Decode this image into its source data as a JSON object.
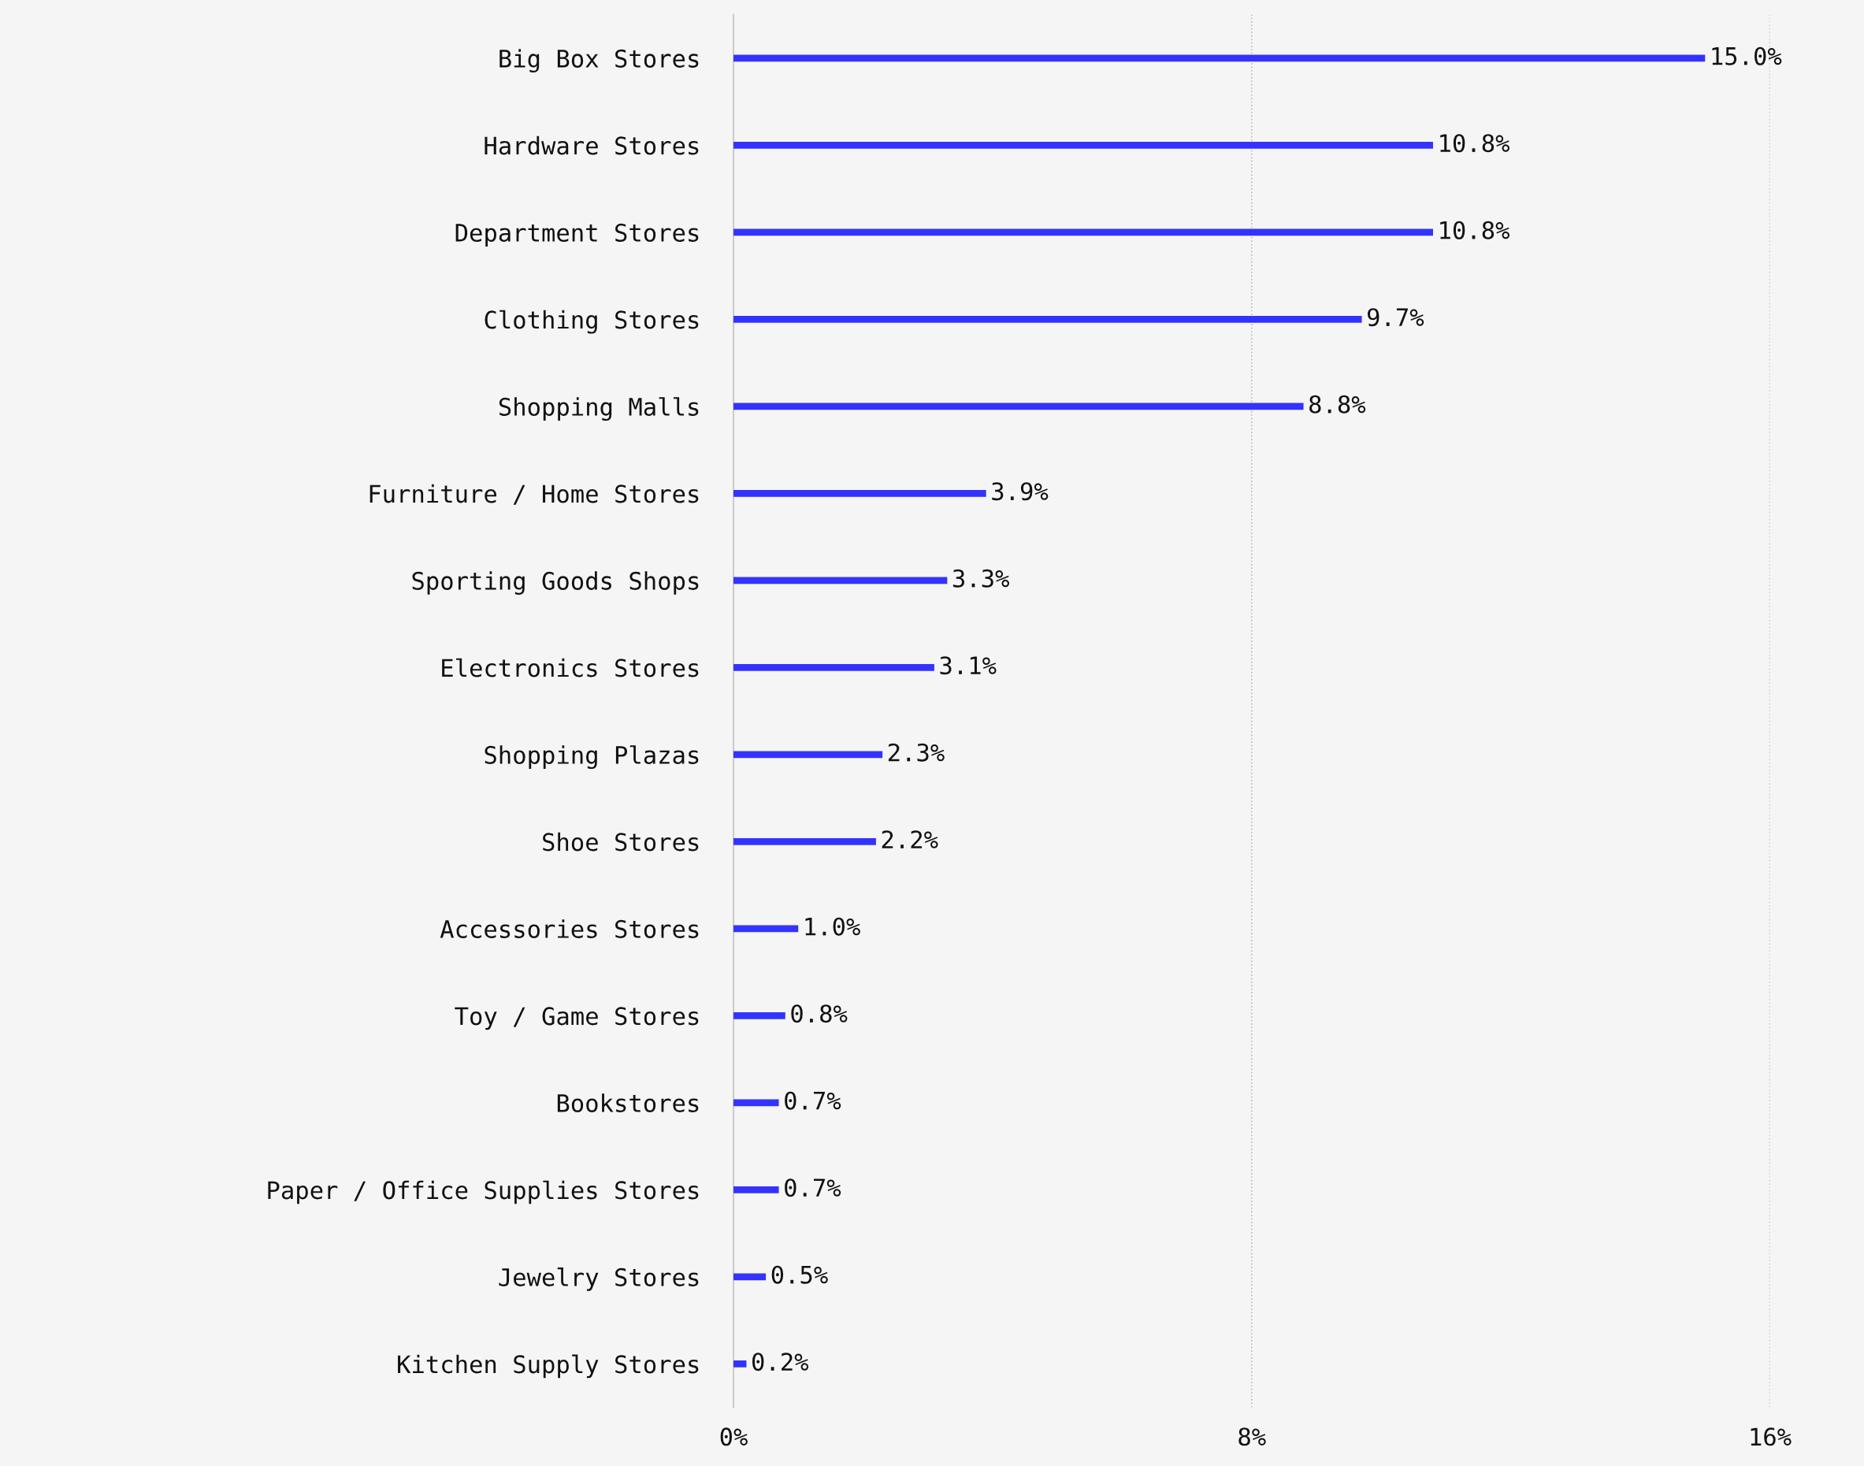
{
  "chart_data": {
    "type": "bar",
    "orientation": "horizontal",
    "categories": [
      "Big Box Stores",
      "Hardware Stores",
      "Department Stores",
      "Clothing Stores",
      "Shopping Malls",
      "Furniture / Home Stores",
      "Sporting Goods Shops",
      "Electronics Stores",
      "Shopping Plazas",
      "Shoe Stores",
      "Accessories Stores",
      "Toy / Game Stores",
      "Bookstores",
      "Paper / Office Supplies Stores",
      "Jewelry Stores",
      "Kitchen Supply Stores"
    ],
    "values": [
      15.0,
      10.8,
      10.8,
      9.7,
      8.8,
      3.9,
      3.3,
      3.1,
      2.3,
      2.2,
      1.0,
      0.8,
      0.7,
      0.7,
      0.5,
      0.2
    ],
    "value_labels": [
      "15.0%",
      "10.8%",
      "10.8%",
      "9.7%",
      "8.8%",
      "3.9%",
      "3.3%",
      "3.1%",
      "2.3%",
      "2.2%",
      "1.0%",
      "0.8%",
      "0.7%",
      "0.7%",
      "0.5%",
      "0.2%"
    ],
    "color": "#3333ff",
    "xlim": [
      0,
      16
    ],
    "xticks": [
      {
        "value": 0,
        "label": "0%"
      },
      {
        "value": 8,
        "label": "8%"
      },
      {
        "value": 16,
        "label": "16%"
      }
    ],
    "grid": "x"
  }
}
